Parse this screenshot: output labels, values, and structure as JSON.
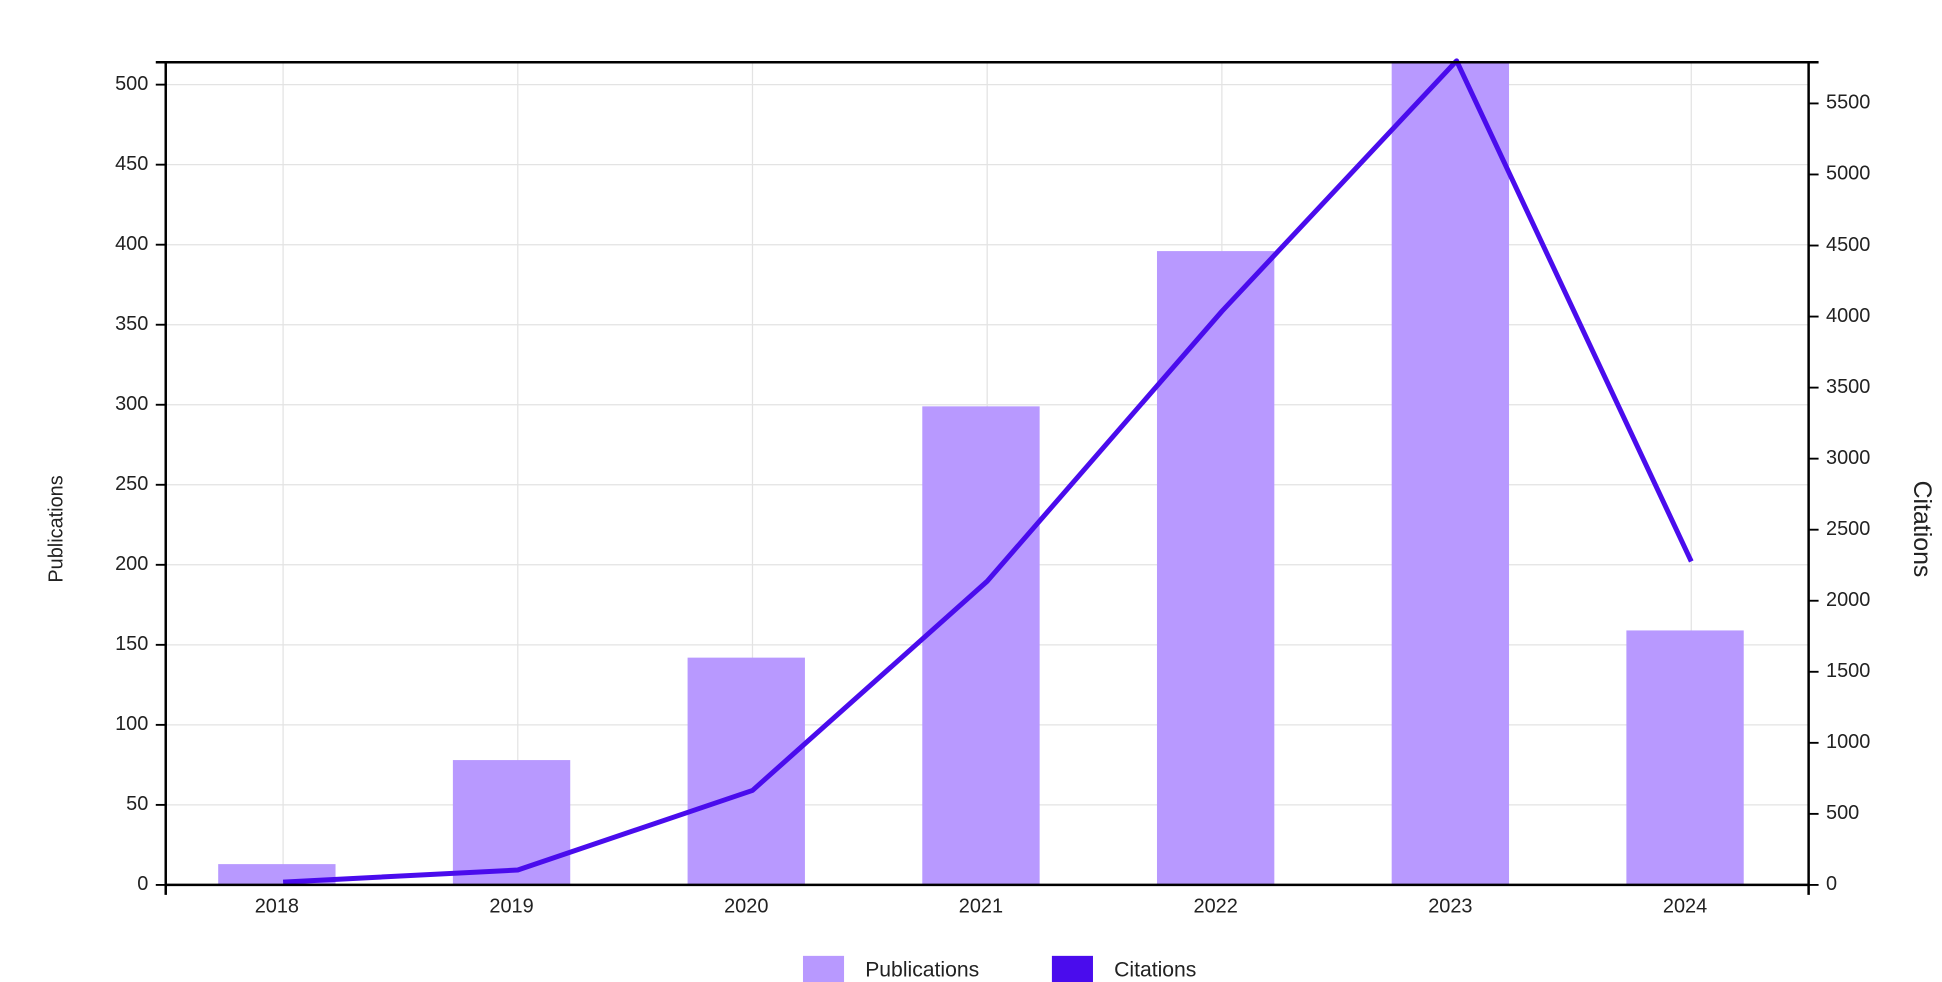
{
  "chart_data": {
    "type": "bar-line",
    "categories": [
      "2018",
      "2019",
      "2020",
      "2021",
      "2022",
      "2023",
      "2024"
    ],
    "series": [
      {
        "name": "Publications",
        "type": "bar",
        "color": "#b899ff",
        "values": [
          13,
          78,
          142,
          299,
          396,
          514,
          159
        ]
      },
      {
        "name": "Citations",
        "type": "line",
        "axis": "y2",
        "color": "#4a0ced",
        "values": [
          20,
          105,
          665,
          2137,
          4037,
          5800,
          2277
        ]
      }
    ],
    "ylabel": "Publications",
    "y2label": "Citations",
    "ylim": [
      0,
      514
    ],
    "yticks": [
      0,
      50,
      100,
      150,
      200,
      250,
      300,
      350,
      400,
      450,
      500
    ],
    "y2lim": [
      0,
      5790
    ],
    "y2ticks": [
      0,
      500,
      1000,
      1500,
      2000,
      2500,
      3000,
      3500,
      4000,
      4500,
      5000,
      5500
    ],
    "grid": true,
    "legend": "bottom"
  }
}
